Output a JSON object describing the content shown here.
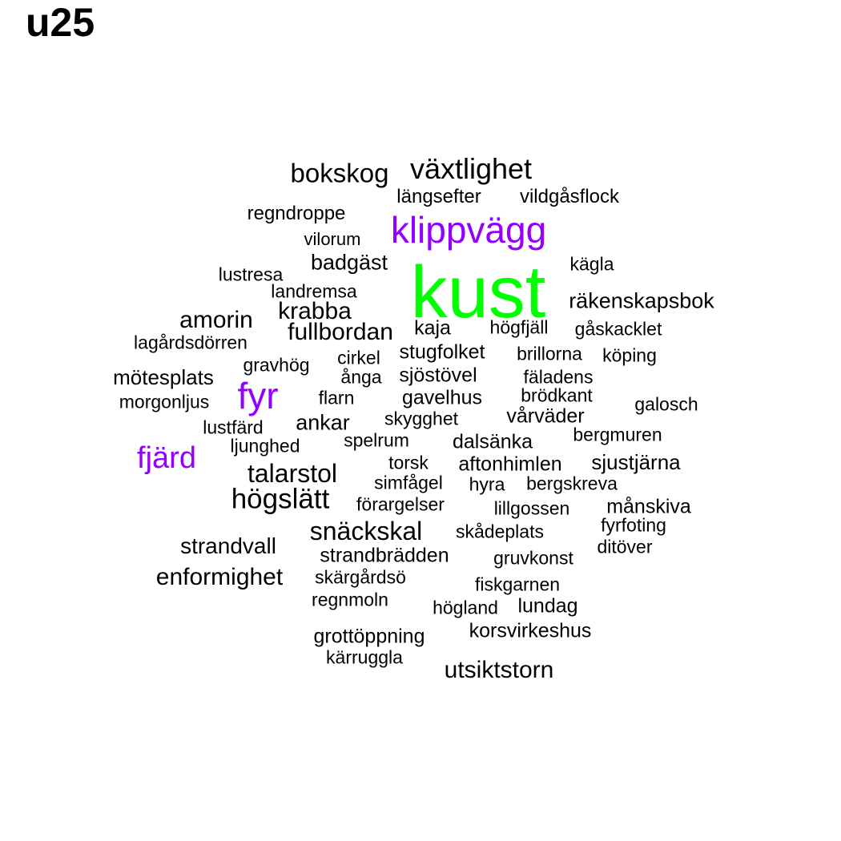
{
  "title": "u25",
  "colors": {
    "default": "#000000",
    "highlight": "#9400ff",
    "primary": "#00ff00"
  },
  "words": [
    {
      "text": "kust",
      "weight": 10,
      "color": "#00ff00"
    },
    {
      "text": "klippvägg",
      "weight": 5,
      "color": "#9400ff"
    },
    {
      "text": "fyr",
      "weight": 5,
      "color": "#9400ff"
    },
    {
      "text": "fjärd",
      "weight": 4,
      "color": "#9400ff"
    },
    {
      "text": "växtlighet",
      "weight": 4,
      "color": "#000000"
    },
    {
      "text": "bokskog",
      "weight": 4,
      "color": "#000000"
    },
    {
      "text": "högslätt",
      "weight": 4,
      "color": "#000000"
    },
    {
      "text": "talarstol",
      "weight": 3,
      "color": "#000000"
    },
    {
      "text": "snäckskal",
      "weight": 3,
      "color": "#000000"
    },
    {
      "text": "enformighet",
      "weight": 3,
      "color": "#000000"
    },
    {
      "text": "utsiktstorn",
      "weight": 3,
      "color": "#000000"
    },
    {
      "text": "amorin",
      "weight": 3,
      "color": "#000000"
    },
    {
      "text": "fullbordan",
      "weight": 3,
      "color": "#000000"
    },
    {
      "text": "krabba",
      "weight": 3,
      "color": "#000000"
    },
    {
      "text": "strandvall",
      "weight": 3,
      "color": "#000000"
    },
    {
      "text": "räkenskapsbok",
      "weight": 2,
      "color": "#000000"
    },
    {
      "text": "badgäst",
      "weight": 2,
      "color": "#000000"
    },
    {
      "text": "ankar",
      "weight": 2,
      "color": "#000000"
    },
    {
      "text": "mötesplats",
      "weight": 2,
      "color": "#000000"
    },
    {
      "text": "sjustjärna",
      "weight": 2,
      "color": "#000000"
    },
    {
      "text": "stugfolket",
      "weight": 2,
      "color": "#000000"
    },
    {
      "text": "vårväder",
      "weight": 2,
      "color": "#000000"
    },
    {
      "text": "sjöstövel",
      "weight": 2,
      "color": "#000000"
    },
    {
      "text": "gavelhus",
      "weight": 2,
      "color": "#000000"
    },
    {
      "text": "strandbrädden",
      "weight": 2,
      "color": "#000000"
    },
    {
      "text": "månskiva",
      "weight": 2,
      "color": "#000000"
    },
    {
      "text": "korsvirkeshus",
      "weight": 2,
      "color": "#000000"
    },
    {
      "text": "grottöppning",
      "weight": 2,
      "color": "#000000"
    },
    {
      "text": "lundag",
      "weight": 2,
      "color": "#000000"
    },
    {
      "text": "aftonhimlen",
      "weight": 2,
      "color": "#000000"
    },
    {
      "text": "dalsänka",
      "weight": 2,
      "color": "#000000"
    },
    {
      "text": "kaja",
      "weight": 2,
      "color": "#000000"
    },
    {
      "text": "regndroppe",
      "weight": 2,
      "color": "#000000"
    },
    {
      "text": "längsefter",
      "weight": 1,
      "color": "#000000"
    },
    {
      "text": "vildgåsflock",
      "weight": 1,
      "color": "#000000"
    },
    {
      "text": "vilorum",
      "weight": 1,
      "color": "#000000"
    },
    {
      "text": "kägla",
      "weight": 1,
      "color": "#000000"
    },
    {
      "text": "lustresa",
      "weight": 1,
      "color": "#000000"
    },
    {
      "text": "landremsa",
      "weight": 1,
      "color": "#000000"
    },
    {
      "text": "högfjäll",
      "weight": 1,
      "color": "#000000"
    },
    {
      "text": "gåskacklet",
      "weight": 1,
      "color": "#000000"
    },
    {
      "text": "lagårdsdörren",
      "weight": 1,
      "color": "#000000"
    },
    {
      "text": "cirkel",
      "weight": 1,
      "color": "#000000"
    },
    {
      "text": "brillorna",
      "weight": 1,
      "color": "#000000"
    },
    {
      "text": "köping",
      "weight": 1,
      "color": "#000000"
    },
    {
      "text": "gravhög",
      "weight": 1,
      "color": "#000000"
    },
    {
      "text": "ånga",
      "weight": 1,
      "color": "#000000"
    },
    {
      "text": "fäladens",
      "weight": 1,
      "color": "#000000"
    },
    {
      "text": "morgonljus",
      "weight": 1,
      "color": "#000000"
    },
    {
      "text": "flarn",
      "weight": 1,
      "color": "#000000"
    },
    {
      "text": "brödkant",
      "weight": 1,
      "color": "#000000"
    },
    {
      "text": "galosch",
      "weight": 1,
      "color": "#000000"
    },
    {
      "text": "lustfärd",
      "weight": 1,
      "color": "#000000"
    },
    {
      "text": "skygghet",
      "weight": 1,
      "color": "#000000"
    },
    {
      "text": "bergmuren",
      "weight": 1,
      "color": "#000000"
    },
    {
      "text": "ljunghed",
      "weight": 1,
      "color": "#000000"
    },
    {
      "text": "spelrum",
      "weight": 1,
      "color": "#000000"
    },
    {
      "text": "torsk",
      "weight": 1,
      "color": "#000000"
    },
    {
      "text": "simfågel",
      "weight": 1,
      "color": "#000000"
    },
    {
      "text": "hyra",
      "weight": 1,
      "color": "#000000"
    },
    {
      "text": "bergskreva",
      "weight": 1,
      "color": "#000000"
    },
    {
      "text": "förargelser",
      "weight": 1,
      "color": "#000000"
    },
    {
      "text": "lillgossen",
      "weight": 1,
      "color": "#000000"
    },
    {
      "text": "fyrfoting",
      "weight": 1,
      "color": "#000000"
    },
    {
      "text": "skådeplats",
      "weight": 1,
      "color": "#000000"
    },
    {
      "text": "ditöver",
      "weight": 1,
      "color": "#000000"
    },
    {
      "text": "gruvkonst",
      "weight": 1,
      "color": "#000000"
    },
    {
      "text": "skärgårdsö",
      "weight": 1,
      "color": "#000000"
    },
    {
      "text": "fiskgarnen",
      "weight": 1,
      "color": "#000000"
    },
    {
      "text": "regnmoln",
      "weight": 1,
      "color": "#000000"
    },
    {
      "text": "högland",
      "weight": 1,
      "color": "#000000"
    },
    {
      "text": "kärruggla",
      "weight": 1,
      "color": "#000000"
    }
  ]
}
